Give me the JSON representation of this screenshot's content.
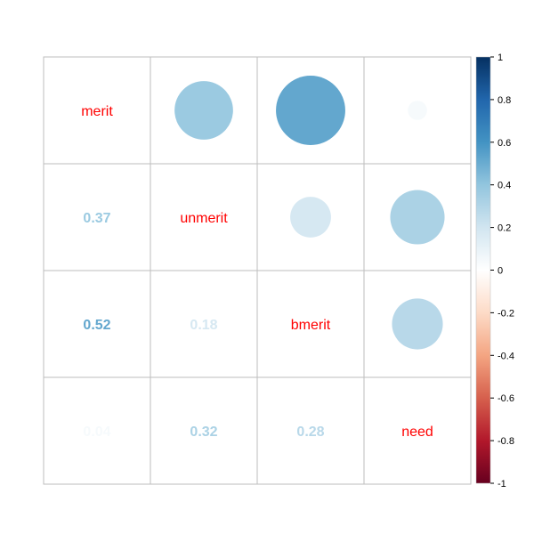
{
  "chart_data": {
    "type": "heatmap",
    "title": "",
    "variables": [
      "merit",
      "unmerit",
      "bmerit",
      "need"
    ],
    "matrix": [
      [
        1.0,
        0.37,
        0.52,
        0.04
      ],
      [
        0.37,
        1.0,
        0.18,
        0.32
      ],
      [
        0.52,
        0.18,
        1.0,
        0.28
      ],
      [
        0.04,
        0.32,
        0.28,
        1.0
      ]
    ],
    "upper_method": "circle",
    "lower_method": "number",
    "lower_labels": [
      {
        "row": 1,
        "col": 0,
        "text": "0.37"
      },
      {
        "row": 2,
        "col": 0,
        "text": "0.52"
      },
      {
        "row": 2,
        "col": 1,
        "text": "0.18"
      },
      {
        "row": 3,
        "col": 0,
        "text": "0.04"
      },
      {
        "row": 3,
        "col": 1,
        "text": "0.32"
      },
      {
        "row": 3,
        "col": 2,
        "text": "0.28"
      }
    ],
    "diagonal_label_color": "#FF0000",
    "colorbar": {
      "range": [
        -1,
        1
      ],
      "ticks": [
        "1",
        "0.8",
        "0.6",
        "0.4",
        "0.2",
        "0",
        "-0.2",
        "-0.4",
        "-0.6",
        "-0.8",
        "-1"
      ],
      "colors": [
        "#67001F",
        "#B2182B",
        "#D6604D",
        "#F4A582",
        "#FDDBC7",
        "#FFFFFF",
        "#D1E5F0",
        "#92C5DE",
        "#4393C3",
        "#2166AC",
        "#053061"
      ]
    },
    "grid_color": "#BEBEBE"
  }
}
